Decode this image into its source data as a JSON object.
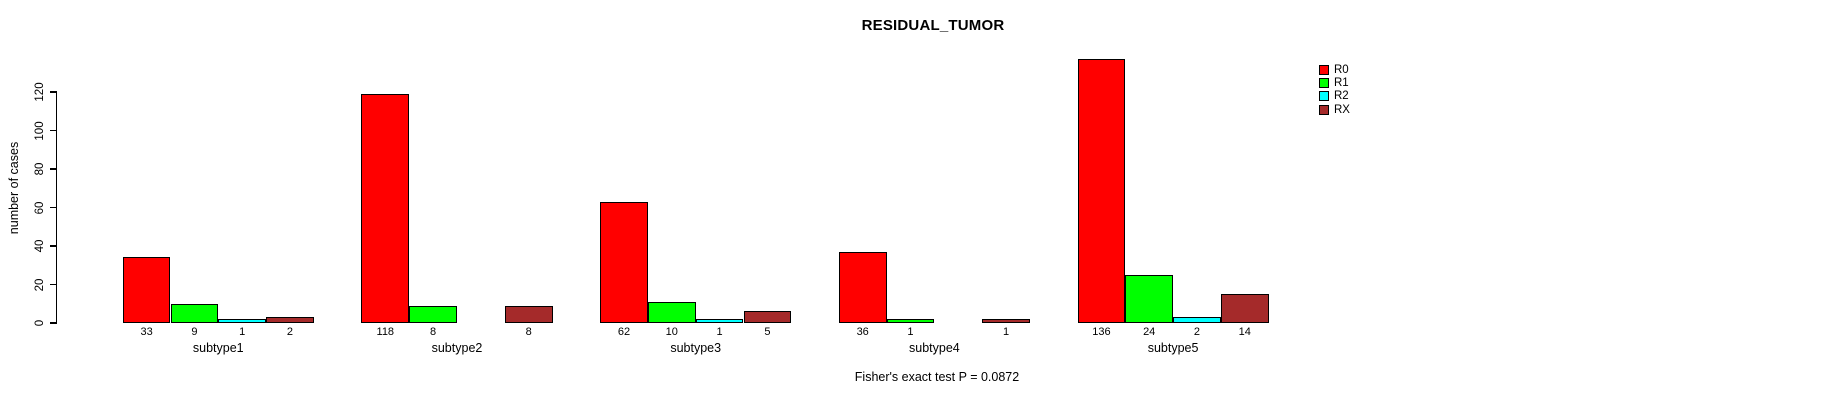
{
  "chart_data": {
    "type": "bar",
    "title": "RESIDUAL_TUMOR",
    "xlabel": "",
    "ylabel": "number of cases",
    "categories": [
      "subtype1",
      "subtype2",
      "subtype3",
      "subtype4",
      "subtype5"
    ],
    "series": [
      {
        "name": "R0",
        "color": "#ff0000",
        "values": [
          33,
          118,
          62,
          36,
          136
        ]
      },
      {
        "name": "R1",
        "color": "#00ff00",
        "values": [
          9,
          8,
          10,
          1,
          24
        ]
      },
      {
        "name": "R2",
        "color": "#00ffff",
        "values": [
          1,
          0,
          1,
          0,
          2
        ]
      },
      {
        "name": "RX",
        "color": "#a52a2a",
        "values": [
          2,
          8,
          5,
          1,
          14
        ]
      }
    ],
    "ylim": [
      0,
      120
    ],
    "yticks": [
      0,
      20,
      40,
      60,
      80,
      100,
      120
    ],
    "grid": false,
    "legend_position": "right",
    "bar_value_labels_shown": true,
    "zero_values_hidden": true,
    "annotation": "Fisher's exact test P = 0.0872"
  },
  "colors": {
    "background": "#ffffff",
    "axis": "#000000",
    "text": "#000000"
  }
}
